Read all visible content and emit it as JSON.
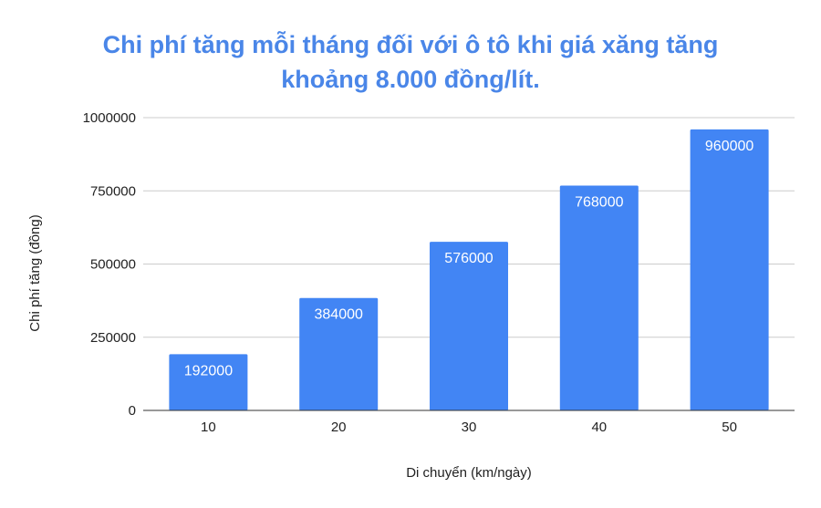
{
  "chart_data": {
    "type": "bar",
    "title_lines": [
      "Chi phí tăng mỗi tháng đối với ô tô khi giá xăng tăng",
      "khoảng 8.000 đồng/lít."
    ],
    "xlabel": "Di chuyển (km/ngày)",
    "ylabel": "Chi phí tăng (đồng)",
    "categories": [
      "10",
      "20",
      "30",
      "40",
      "50"
    ],
    "values": [
      192000,
      384000,
      576000,
      768000,
      960000
    ],
    "ylim": [
      0,
      1000000
    ],
    "y_ticks": [
      0,
      250000,
      500000,
      750000,
      1000000
    ],
    "y_tick_labels": [
      "0",
      "250000",
      "500000",
      "750000",
      "1000000"
    ],
    "data_labels": [
      "192000",
      "384000",
      "576000",
      "768000",
      "960000"
    ],
    "grid": true,
    "legend": "none",
    "colors": {
      "bar": "#4285f4",
      "title": "#4a86e8",
      "grid": "#cccccc",
      "axis": "#333333",
      "text": "#222222",
      "data_label": "#ffffff"
    }
  }
}
